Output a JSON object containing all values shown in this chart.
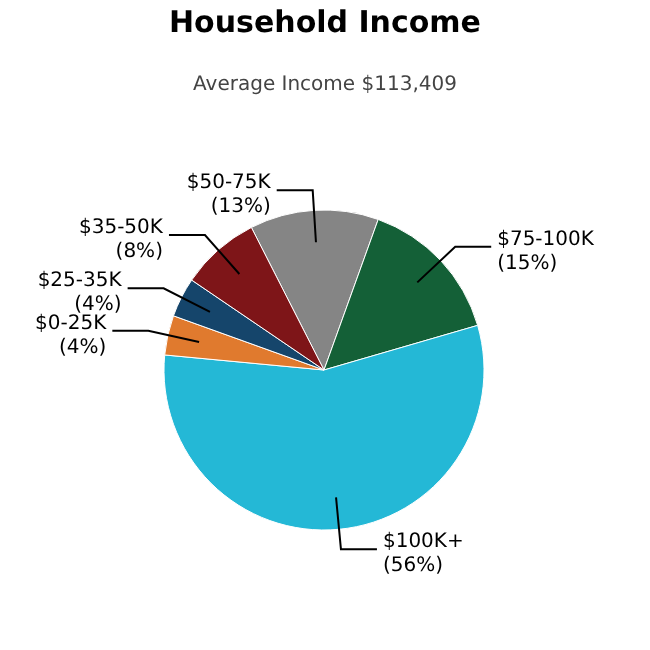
{
  "chart_data": {
    "type": "pie",
    "title": "Household Income",
    "subtitle": "Average Income  $113,409",
    "categories": [
      "$50-75K",
      "$75-100K",
      "$100K+",
      "$0-25K",
      "$25-35K",
      "$35-50K"
    ],
    "values": [
      13,
      15,
      56,
      4,
      4,
      8
    ],
    "value_labels": [
      "(13%)",
      "(15%)",
      "(56%)",
      "(4%)",
      "(4%)",
      "(8%)"
    ],
    "colors": [
      "#858585",
      "#146037",
      "#24b8d6",
      "#e07a2e",
      "#15456b",
      "#7e1518"
    ]
  }
}
